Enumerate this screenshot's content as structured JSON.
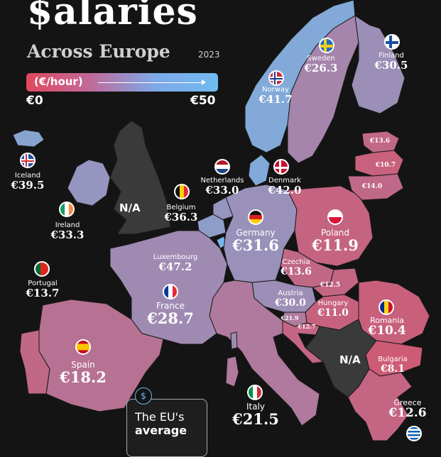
{
  "title": "$alaries",
  "subtitle": "Across Europe",
  "year": "2023",
  "legend": {
    "unit": "(€/hour)",
    "min_label": "€0",
    "max_label": "€50",
    "min_value": 0,
    "max_value": 50,
    "low_color": "#e0485e",
    "high_color": "#6fbcf0"
  },
  "na_label": "N/A",
  "callout": {
    "icon": "money-bag-icon",
    "line1": "The EU's",
    "line2": "average"
  },
  "countries": [
    {
      "key": "sweden",
      "name": "Sweden",
      "value_label": "€26.3",
      "value": 26.3
    },
    {
      "key": "finland",
      "name": "Finland",
      "value_label": "€30.5",
      "value": 30.5
    },
    {
      "key": "norway",
      "name": "Norway",
      "value_label": "€41.7",
      "value": 41.7
    },
    {
      "key": "iceland",
      "name": "Iceland",
      "value_label": "€39.5",
      "value": 39.5
    },
    {
      "key": "ireland",
      "name": "Ireland",
      "value_label": "€33.3",
      "value": 33.3
    },
    {
      "key": "netherlands",
      "name": "Netherlands",
      "value_label": "€33.0",
      "value": 33.0
    },
    {
      "key": "denmark",
      "name": "Denmark",
      "value_label": "€42.0",
      "value": 42.0
    },
    {
      "key": "belgium",
      "name": "Belgium",
      "value_label": "€36.3",
      "value": 36.3
    },
    {
      "key": "germany",
      "name": "Germany",
      "value_label": "€31.6",
      "value": 31.6
    },
    {
      "key": "poland",
      "name": "Poland",
      "value_label": "€11.9",
      "value": 11.9
    },
    {
      "key": "luxembourg",
      "name": "Luxembourg",
      "value_label": "€47.2",
      "value": 47.2
    },
    {
      "key": "czechia",
      "name": "Czechia",
      "value_label": "€13.6",
      "value": 13.6
    },
    {
      "key": "portugal",
      "name": "Portugal",
      "value_label": "€13.7",
      "value": 13.7
    },
    {
      "key": "france",
      "name": "France",
      "value_label": "€28.7",
      "value": 28.7
    },
    {
      "key": "austria",
      "name": "Austria",
      "value_label": "€30.0",
      "value": 30.0
    },
    {
      "key": "hungary",
      "name": "Hungary",
      "value_label": "€11.0",
      "value": 11.0
    },
    {
      "key": "romania",
      "name": "Romania",
      "value_label": "€10.4",
      "value": 10.4
    },
    {
      "key": "spain",
      "name": "Spain",
      "value_label": "€18.2",
      "value": 18.2
    },
    {
      "key": "bulgaria",
      "name": "Bulgaria",
      "value_label": "€8.1",
      "value": 8.1
    },
    {
      "key": "italy",
      "name": "Italy",
      "value_label": "€21.5",
      "value": 21.5
    },
    {
      "key": "greece",
      "name": "Greece",
      "value_label": "€12.6",
      "value": 12.6
    },
    {
      "key": "estonia",
      "name": "",
      "value_label": "€13.6",
      "value": 13.6
    },
    {
      "key": "latvia",
      "name": "",
      "value_label": "€10.7",
      "value": 10.7
    },
    {
      "key": "lithuania",
      "name": "",
      "value_label": "€14.0",
      "value": 14.0
    },
    {
      "key": "slovakia",
      "name": "",
      "value_label": "€12.5",
      "value": 12.5
    },
    {
      "key": "slovenia",
      "name": "",
      "value_label": "€21.9",
      "value": 21.9
    },
    {
      "key": "croatia",
      "name": "",
      "value_label": "€12.7",
      "value": 12.7
    }
  ]
}
